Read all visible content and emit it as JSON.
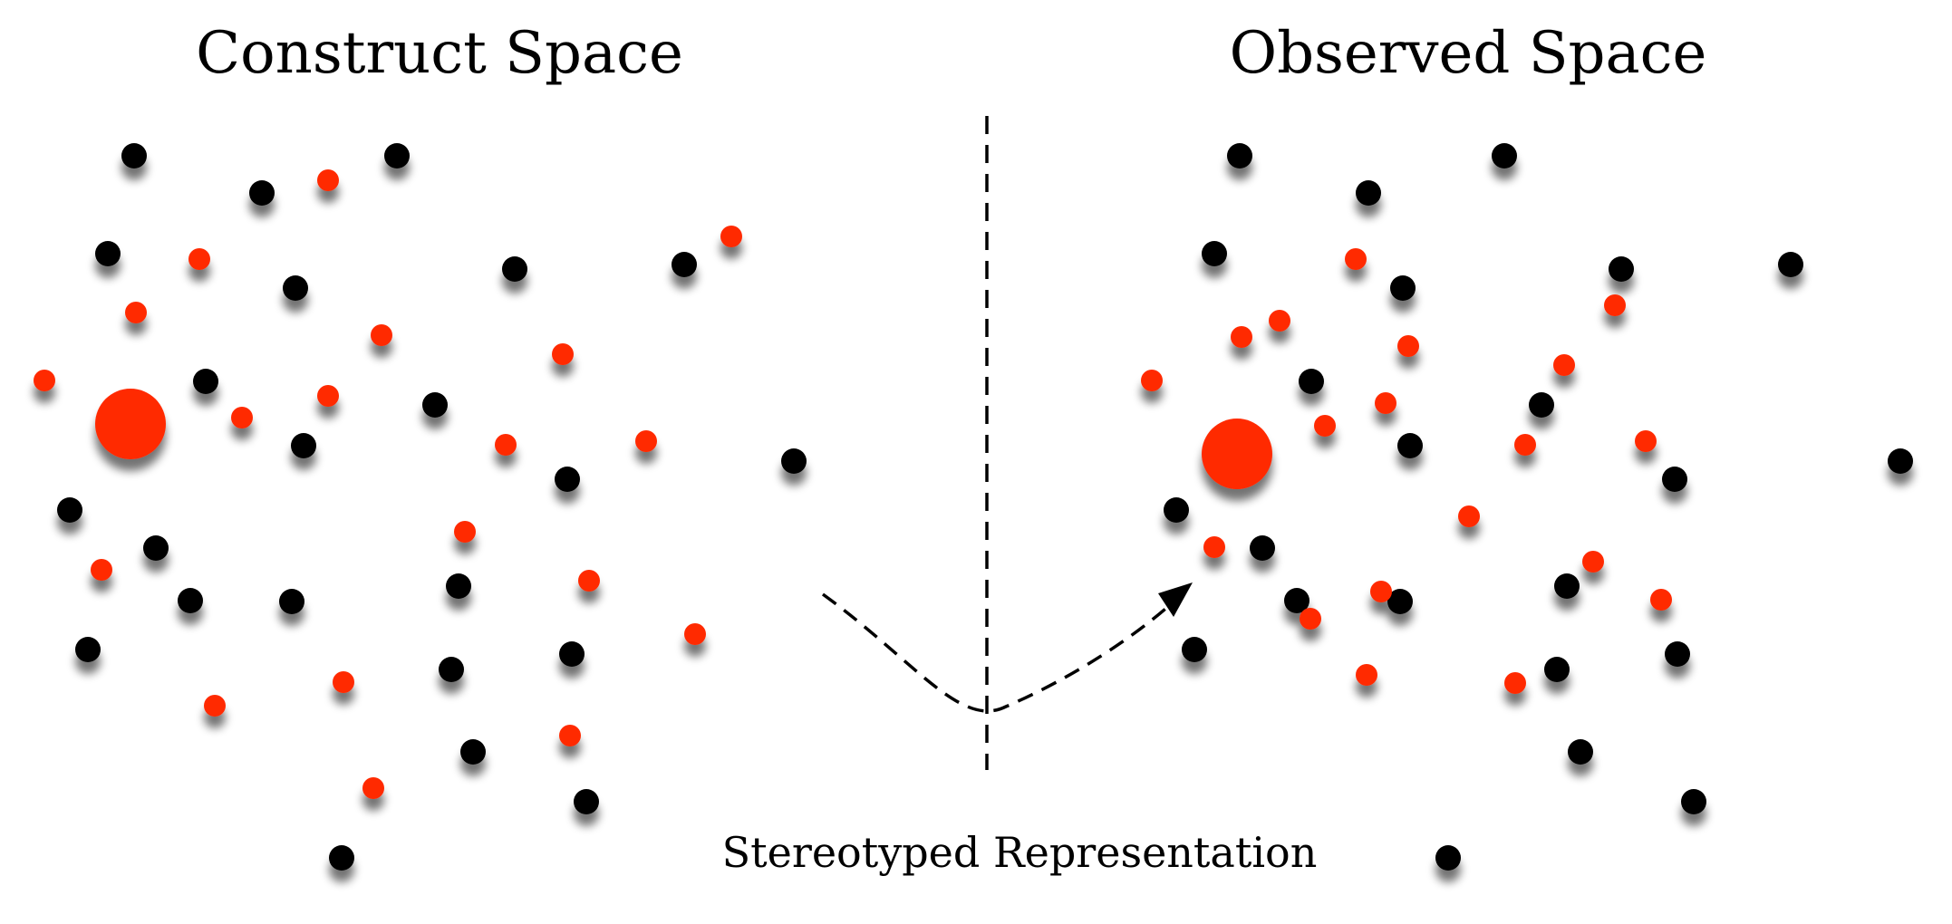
{
  "panels": {
    "left_title": "Construct Space",
    "right_title": "Observed Space"
  },
  "caption": "Stereotyped Representation",
  "colors": {
    "black_dot": "#000000",
    "red_dot": "#ff2a00",
    "divider": "#000000",
    "arrow": "#000000"
  }
}
